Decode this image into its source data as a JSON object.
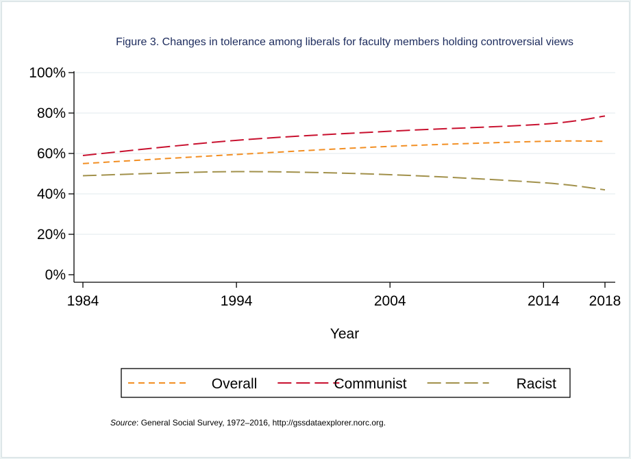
{
  "chart_data": {
    "type": "line",
    "title": "Figure 3. Changes in tolerance among liberals for faculty members holding controversial views",
    "xlabel": "Year",
    "ylabel": "",
    "x": [
      1984,
      1994,
      2004,
      2014,
      2018
    ],
    "xlim": [
      1984,
      2018
    ],
    "ylim": [
      0,
      100
    ],
    "x_ticks": [
      "1984",
      "1994",
      "2004",
      "2014",
      "2018"
    ],
    "y_ticks": [
      "0%",
      "20%",
      "40%",
      "60%",
      "80%",
      "100%"
    ],
    "grid": true,
    "legend_position": "bottom",
    "series": [
      {
        "name": "Overall",
        "values": [
          55,
          59.5,
          63.5,
          66,
          66
        ],
        "color": "#f28e22",
        "dash": "short"
      },
      {
        "name": "Communist",
        "values": [
          59,
          66.5,
          71,
          74.5,
          78.5
        ],
        "color": "#c8102e",
        "dash": "long"
      },
      {
        "name": "Racist",
        "values": [
          49,
          51,
          49.5,
          45.5,
          42
        ],
        "color": "#a1904a",
        "dash": "long"
      }
    ]
  },
  "source": {
    "label": "Source",
    "text": ": General Social Survey, 1972–2016, http://gssdataexplorer.norc.org."
  },
  "colors": {
    "background": "#ffffff",
    "outer_background": "#eaf1f2",
    "title": "#1b2a5c",
    "grid": "#e7eef0"
  }
}
